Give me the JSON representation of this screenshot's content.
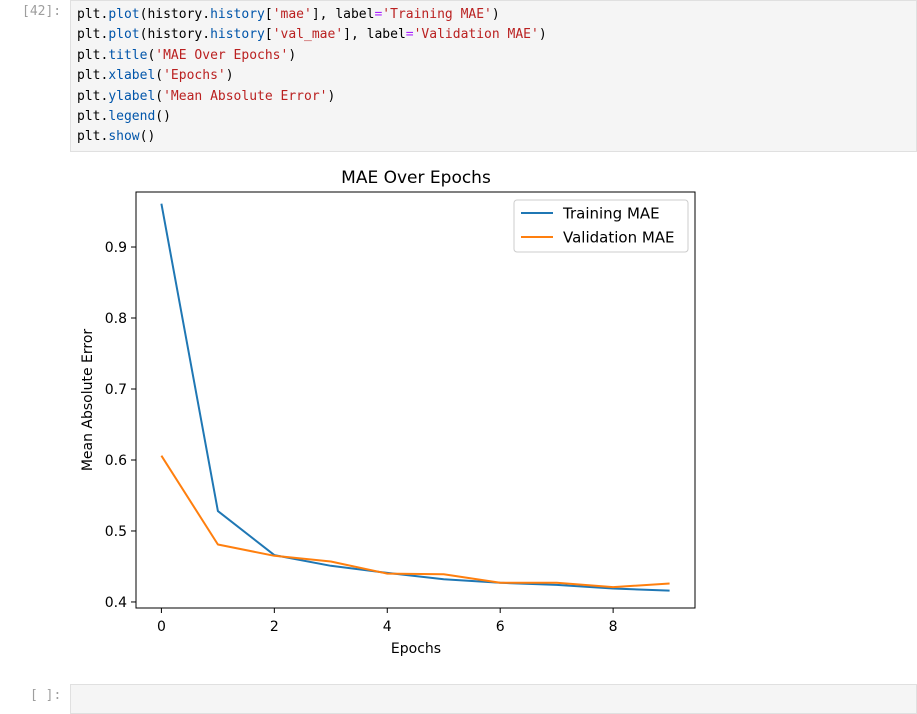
{
  "cell_in": {
    "prompt": "[42]:",
    "lines": [
      [
        {
          "t": "plt",
          "c": "name"
        },
        {
          "t": ".",
          "c": "name"
        },
        {
          "t": "plot",
          "c": "attr"
        },
        {
          "t": "(history",
          "c": "name"
        },
        {
          "t": ".",
          "c": "name"
        },
        {
          "t": "history",
          "c": "attr"
        },
        {
          "t": "[",
          "c": "name"
        },
        {
          "t": "'mae'",
          "c": "str"
        },
        {
          "t": "], label",
          "c": "name"
        },
        {
          "t": "=",
          "c": "op"
        },
        {
          "t": "'Training MAE'",
          "c": "str"
        },
        {
          "t": ")",
          "c": "name"
        }
      ],
      [
        {
          "t": "plt",
          "c": "name"
        },
        {
          "t": ".",
          "c": "name"
        },
        {
          "t": "plot",
          "c": "attr"
        },
        {
          "t": "(history",
          "c": "name"
        },
        {
          "t": ".",
          "c": "name"
        },
        {
          "t": "history",
          "c": "attr"
        },
        {
          "t": "[",
          "c": "name"
        },
        {
          "t": "'val_mae'",
          "c": "str"
        },
        {
          "t": "], label",
          "c": "name"
        },
        {
          "t": "=",
          "c": "op"
        },
        {
          "t": "'Validation MAE'",
          "c": "str"
        },
        {
          "t": ")",
          "c": "name"
        }
      ],
      [
        {
          "t": "plt",
          "c": "name"
        },
        {
          "t": ".",
          "c": "name"
        },
        {
          "t": "title",
          "c": "attr"
        },
        {
          "t": "(",
          "c": "name"
        },
        {
          "t": "'MAE Over Epochs'",
          "c": "str"
        },
        {
          "t": ")",
          "c": "name"
        }
      ],
      [
        {
          "t": "plt",
          "c": "name"
        },
        {
          "t": ".",
          "c": "name"
        },
        {
          "t": "xlabel",
          "c": "attr"
        },
        {
          "t": "(",
          "c": "name"
        },
        {
          "t": "'Epochs'",
          "c": "str"
        },
        {
          "t": ")",
          "c": "name"
        }
      ],
      [
        {
          "t": "plt",
          "c": "name"
        },
        {
          "t": ".",
          "c": "name"
        },
        {
          "t": "ylabel",
          "c": "attr"
        },
        {
          "t": "(",
          "c": "name"
        },
        {
          "t": "'Mean Absolute Error'",
          "c": "str"
        },
        {
          "t": ")",
          "c": "name"
        }
      ],
      [
        {
          "t": "plt",
          "c": "name"
        },
        {
          "t": ".",
          "c": "name"
        },
        {
          "t": "legend",
          "c": "attr"
        },
        {
          "t": "()",
          "c": "name"
        }
      ],
      [
        {
          "t": "plt",
          "c": "name"
        },
        {
          "t": ".",
          "c": "name"
        },
        {
          "t": "show",
          "c": "attr"
        },
        {
          "t": "()",
          "c": "name"
        }
      ]
    ]
  },
  "cell_empty": {
    "prompt": "[ ]:"
  },
  "chart_data": {
    "type": "line",
    "title": "MAE Over Epochs",
    "xlabel": "Epochs",
    "ylabel": "Mean Absolute Error",
    "xlim": [
      -0.45,
      9.45
    ],
    "ylim": [
      0.3915,
      0.9775
    ],
    "xticks": [
      0,
      2,
      4,
      6,
      8
    ],
    "yticks": [
      0.4,
      0.5,
      0.6,
      0.7,
      0.8,
      0.9
    ],
    "grid": false,
    "legend_position": "upper right",
    "series": [
      {
        "name": "Training MAE",
        "color": "#1f77b4",
        "x": [
          0,
          1,
          2,
          3,
          4,
          5,
          6,
          7,
          8,
          9
        ],
        "values": [
          0.961,
          0.528,
          0.466,
          0.451,
          0.441,
          0.432,
          0.427,
          0.424,
          0.419,
          0.416
        ]
      },
      {
        "name": "Validation MAE",
        "color": "#ff7f0e",
        "x": [
          0,
          1,
          2,
          3,
          4,
          5,
          6,
          7,
          8,
          9
        ],
        "values": [
          0.606,
          0.481,
          0.465,
          0.457,
          0.44,
          0.439,
          0.427,
          0.427,
          0.421,
          0.426
        ]
      }
    ]
  }
}
